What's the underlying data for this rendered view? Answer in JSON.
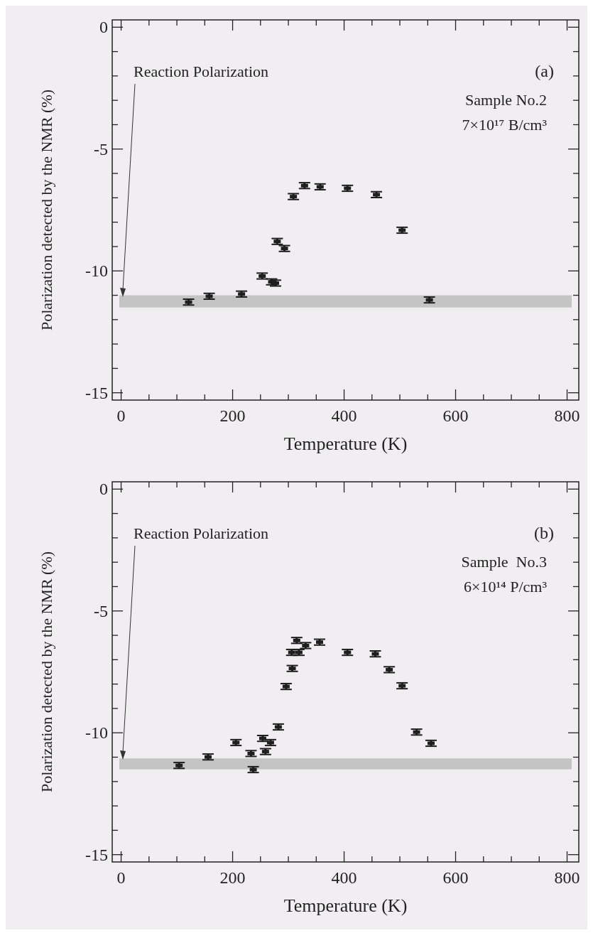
{
  "chart_data": [
    {
      "type": "scatter",
      "xlabel": "Temperature (K)",
      "ylabel": "Polarization detected by the NMR (%)",
      "annotations": [
        "(a)",
        "Sample No.2",
        "7×10¹⁷ B/cm³"
      ],
      "x": [
        121,
        158,
        216,
        253,
        270,
        277,
        280,
        293,
        309,
        329,
        357,
        406,
        458,
        504,
        553
      ],
      "series": [
        {
          "color": "#1e1e1e",
          "values": [
            -11.28,
            -11.04,
            -10.95,
            -10.21,
            -10.45,
            -10.5,
            -8.79,
            -9.08,
            -6.95,
            -6.5,
            -6.55,
            -6.61,
            -6.87,
            -8.33,
            -11.19
          ],
          "errors": [
            0.12,
            0.12,
            0.12,
            0.12,
            0.12,
            0.12,
            0.12,
            0.12,
            0.12,
            0.12,
            0.12,
            0.12,
            0.12,
            0.12,
            0.12
          ]
        }
      ],
      "bands": [
        {
          "axis": "y",
          "from": -11.0,
          "to": -11.5,
          "color": "#c4c4c4",
          "label": "Reaction Polarization"
        }
      ],
      "xlim": [
        -16,
        821
      ],
      "ylim": [
        -15.3,
        0.3
      ],
      "xticks": [
        0,
        {
          "value": 50,
          "label": null
        },
        {
          "value": 100,
          "label": null
        },
        {
          "value": 150,
          "label": null
        },
        200,
        {
          "value": 250,
          "label": null
        },
        {
          "value": 300,
          "label": null
        },
        {
          "value": 350,
          "label": null
        },
        400,
        {
          "value": 450,
          "label": null
        },
        {
          "value": 500,
          "label": null
        },
        {
          "value": 550,
          "label": null
        },
        600,
        {
          "value": 650,
          "label": null
        },
        {
          "value": 700,
          "label": null
        },
        {
          "value": 750,
          "label": null
        },
        800
      ],
      "yticks": [
        0,
        {
          "value": -1,
          "label": null
        },
        {
          "value": -2,
          "label": null
        },
        {
          "value": -3,
          "label": null
        },
        {
          "value": -4,
          "label": null
        },
        -5,
        {
          "value": -6,
          "label": null
        },
        {
          "value": -7,
          "label": null
        },
        {
          "value": -8,
          "label": null
        },
        {
          "value": -9,
          "label": null
        },
        -10,
        {
          "value": -11,
          "label": null
        },
        {
          "value": -12,
          "label": null
        },
        {
          "value": -13,
          "label": null
        },
        {
          "value": -14,
          "label": null
        },
        -15
      ],
      "grid": false,
      "marker": "square"
    },
    {
      "type": "scatter",
      "xlabel": "Temperature (K)",
      "ylabel": "Polarization detected by the NMR (%)",
      "annotations": [
        "(b)",
        "Sample  No.3",
        "6×10¹⁴ P/cm³"
      ],
      "x": [
        104,
        156,
        206,
        233,
        237,
        254,
        259,
        268,
        282,
        296,
        307,
        306,
        319,
        315,
        331,
        356,
        406,
        456,
        481,
        504,
        530,
        556
      ],
      "series": [
        {
          "color": "#1e1e1e",
          "values": [
            -11.34,
            -10.99,
            -10.4,
            -10.85,
            -11.51,
            -10.23,
            -10.77,
            -10.4,
            -9.76,
            -8.1,
            -7.36,
            -6.7,
            -6.7,
            -6.21,
            -6.42,
            -6.28,
            -6.7,
            -6.76,
            -7.41,
            -8.07,
            -9.97,
            -10.43
          ],
          "errors": [
            0.12,
            0.12,
            0.12,
            0.12,
            0.12,
            0.12,
            0.12,
            0.12,
            0.12,
            0.12,
            0.12,
            0.12,
            0.12,
            0.12,
            0.12,
            0.12,
            0.12,
            0.12,
            0.12,
            0.12,
            0.12,
            0.12
          ]
        }
      ],
      "bands": [
        {
          "axis": "y",
          "from": -11.05,
          "to": -11.5,
          "color": "#c4c4c4",
          "label": "Reaction Polarization"
        }
      ],
      "xlim": [
        -16,
        821
      ],
      "ylim": [
        -15.3,
        0.3
      ],
      "xticks": [
        0,
        {
          "value": 50,
          "label": null
        },
        {
          "value": 100,
          "label": null
        },
        {
          "value": 150,
          "label": null
        },
        200,
        {
          "value": 250,
          "label": null
        },
        {
          "value": 300,
          "label": null
        },
        {
          "value": 350,
          "label": null
        },
        400,
        {
          "value": 450,
          "label": null
        },
        {
          "value": 500,
          "label": null
        },
        {
          "value": 550,
          "label": null
        },
        600,
        {
          "value": 650,
          "label": null
        },
        {
          "value": 700,
          "label": null
        },
        {
          "value": 750,
          "label": null
        },
        800
      ],
      "yticks": [
        0,
        {
          "value": -1,
          "label": null
        },
        {
          "value": -2,
          "label": null
        },
        {
          "value": -3,
          "label": null
        },
        {
          "value": -4,
          "label": null
        },
        -5,
        {
          "value": -6,
          "label": null
        },
        {
          "value": -7,
          "label": null
        },
        {
          "value": -8,
          "label": null
        },
        {
          "value": -9,
          "label": null
        },
        -10,
        {
          "value": -11,
          "label": null
        },
        {
          "value": -12,
          "label": null
        },
        {
          "value": -13,
          "label": null
        },
        {
          "value": -14,
          "label": null
        },
        -15
      ],
      "grid": false,
      "marker": "square"
    }
  ]
}
